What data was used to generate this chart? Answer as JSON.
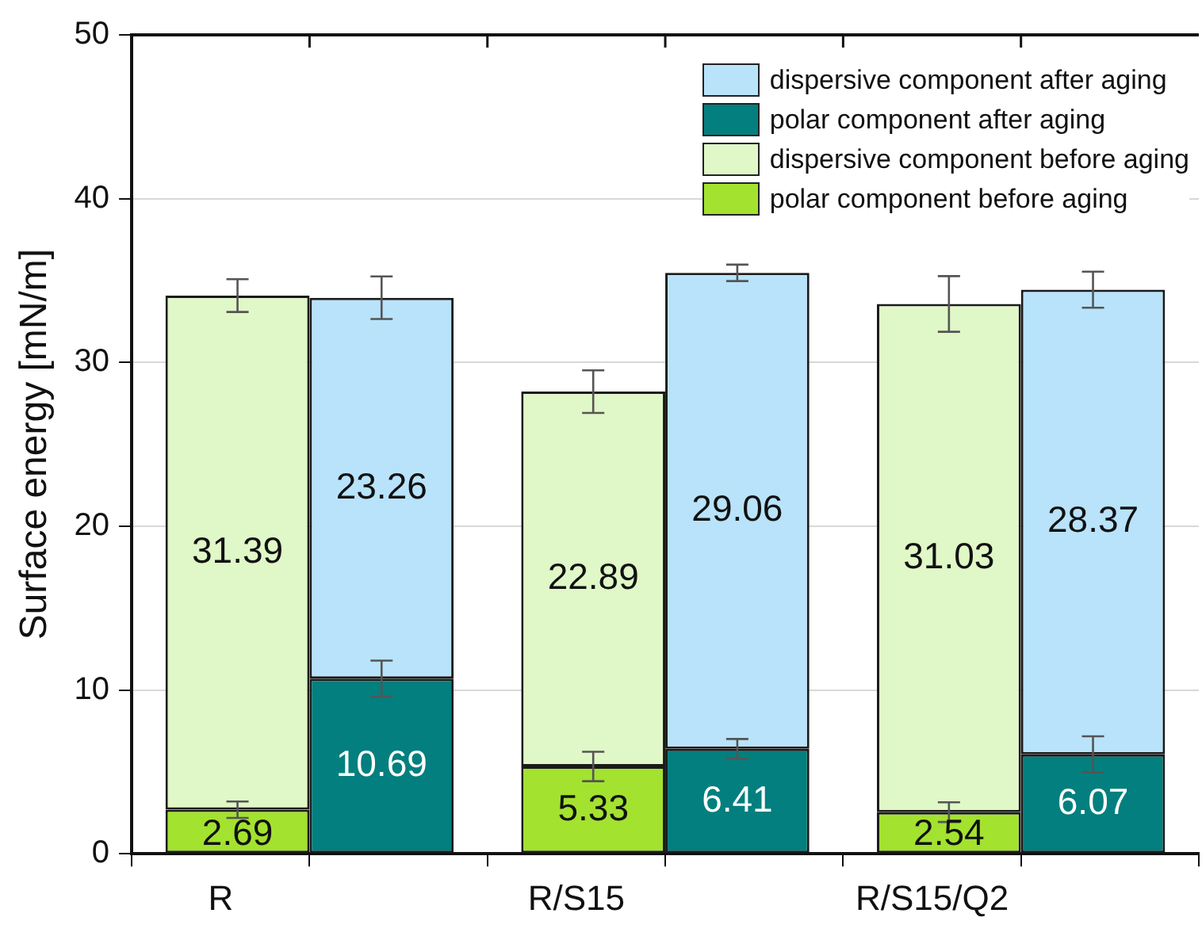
{
  "chart_data": {
    "type": "bar",
    "stacked": true,
    "ylabel": "Surface energy [mN/m]",
    "categories": [
      "R",
      null,
      "R/S15",
      null,
      "R/S15/Q2",
      null
    ],
    "series": [
      {
        "name": "polar component before aging",
        "color": "#a3e22f",
        "values": [
          2.69,
          null,
          5.33,
          null,
          2.54,
          null
        ],
        "errors": [
          0.5,
          null,
          0.9,
          null,
          0.6,
          null
        ]
      },
      {
        "name": "dispersive component before aging",
        "color": "#e0f7c7",
        "values": [
          31.39,
          null,
          22.89,
          null,
          31.03,
          null
        ],
        "errors": [
          1.0,
          null,
          1.3,
          null,
          1.7,
          null
        ]
      },
      {
        "name": "polar component after aging",
        "color": "#027f7e",
        "values": [
          null,
          10.69,
          null,
          6.41,
          null,
          6.07
        ],
        "errors": [
          null,
          1.1,
          null,
          0.6,
          null,
          1.1
        ]
      },
      {
        "name": "dispersive component after aging",
        "color": "#b8e3fb",
        "values": [
          null,
          23.26,
          null,
          29.06,
          null,
          28.37
        ],
        "errors": [
          null,
          1.3,
          null,
          0.5,
          null,
          1.1
        ]
      }
    ],
    "ylim": [
      0,
      50
    ],
    "yticks": [
      0,
      10,
      20,
      30,
      40,
      50
    ],
    "grid": "y",
    "legend": "top right",
    "data_labels": true
  }
}
